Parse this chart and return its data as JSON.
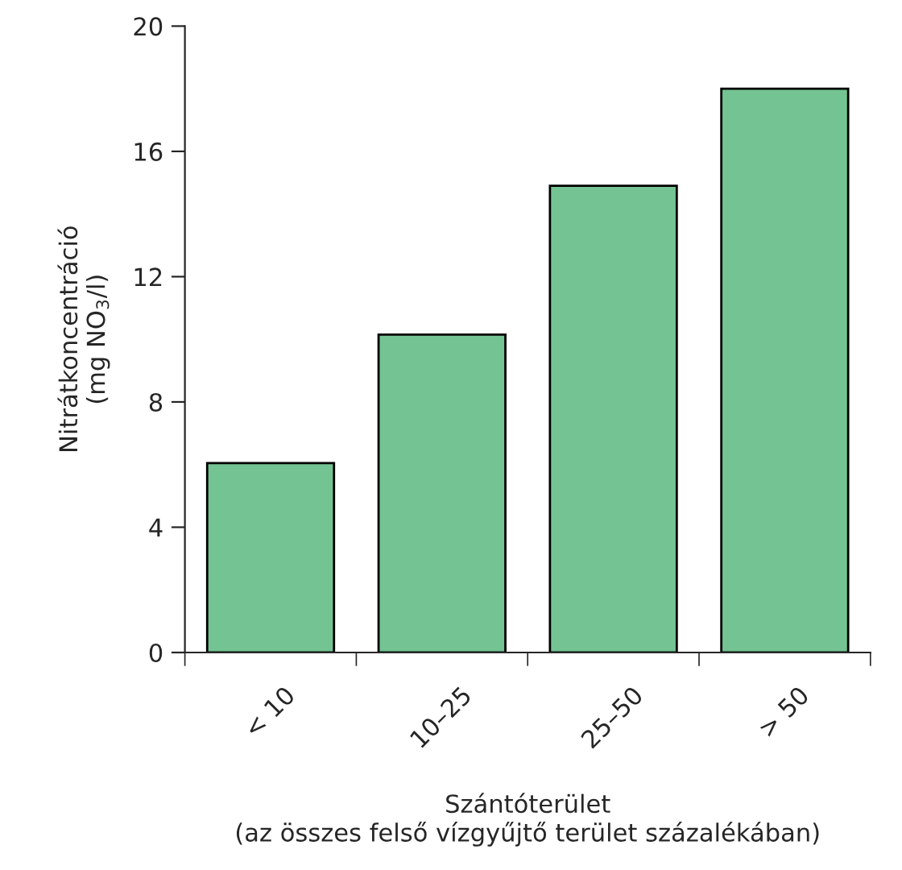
{
  "chart_data": {
    "type": "bar",
    "categories": [
      "< 10",
      "10–25",
      "25–50",
      "> 50"
    ],
    "values": [
      6.05,
      10.15,
      14.9,
      18
    ],
    "color": "#74c493",
    "xlabel": "Szántóterület\n(az összes felső vízgyűjtő terület százalékában)",
    "ylabel": "Nitrátkoncentráció\n(mg NO$_{3}$/l)",
    "ylim": [
      0,
      20
    ],
    "yticks": [
      0,
      4,
      8,
      12,
      16,
      20
    ],
    "grid": false,
    "legend": false
  }
}
